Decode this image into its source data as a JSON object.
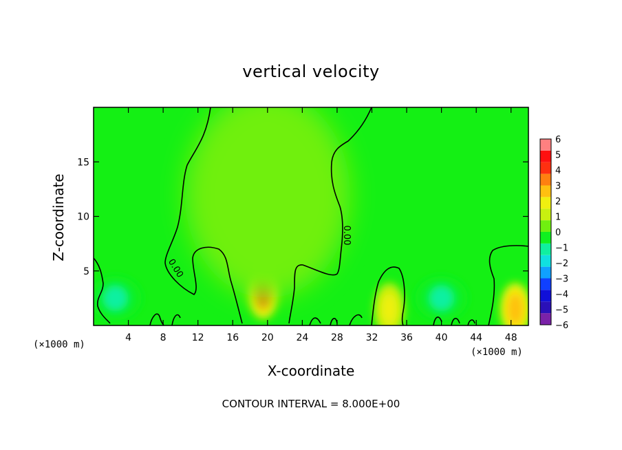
{
  "chart_data": {
    "type": "heatmap",
    "title": "vertical velocity",
    "xlabel": "X-coordinate",
    "ylabel": "Z-coordinate",
    "x_unit_left": "(×1000 m)",
    "x_unit_right": "(×1000 m)",
    "xlim": [
      0,
      50
    ],
    "ylim": [
      0,
      20
    ],
    "x_ticks": [
      4,
      8,
      12,
      16,
      20,
      24,
      28,
      32,
      36,
      40,
      44,
      48
    ],
    "y_ticks": [
      5,
      10,
      15
    ],
    "colorbar": {
      "min": -6,
      "max": 6,
      "labels": [
        "6",
        "5",
        "4",
        "3",
        "2",
        "1",
        "0",
        "−1",
        "−2",
        "−3",
        "−4",
        "−5",
        "−6"
      ],
      "colors": [
        "#7a22a8",
        "#2a10b8",
        "#1010d8",
        "#1040ff",
        "#10a0ff",
        "#10e0e0",
        "#10f0a0",
        "#10f020",
        "#70f010",
        "#c8f010",
        "#f0f010",
        "#ffc010",
        "#ff8010",
        "#ff3010",
        "#ff1010",
        "#ff8080"
      ]
    },
    "contour_label": "0.00",
    "features": [
      {
        "kind": "updraft",
        "x": 19.5,
        "z": 3.0,
        "value": 3.5
      },
      {
        "kind": "updraft",
        "x": 34.0,
        "z": 1.5,
        "value": 1.5
      },
      {
        "kind": "updraft",
        "x": 48.5,
        "z": 1.5,
        "value": 2.5
      },
      {
        "kind": "weak-updraft-plume",
        "x": 20.0,
        "z": 12.0,
        "value": 0.7
      },
      {
        "kind": "downdraft",
        "x": 2.5,
        "z": 2.5,
        "value": -1.2
      },
      {
        "kind": "downdraft",
        "x": 40.0,
        "z": 2.5,
        "value": -1.2
      }
    ],
    "footer": "CONTOUR INTERVAL = 8.000E+00"
  }
}
